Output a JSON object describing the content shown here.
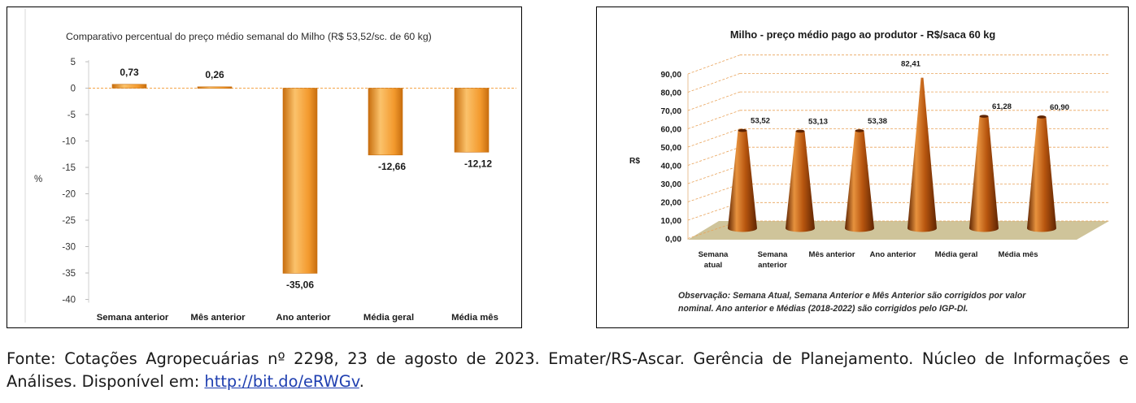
{
  "chart_data": [
    {
      "type": "bar",
      "title": "Comparativo percentual do preço médio semanal do Milho (R$ 53,52/sc. de 60 kg)",
      "ylabel": "%",
      "xlabel": "",
      "categories": [
        "Semana anterior",
        "Mês anterior",
        "Ano anterior",
        "Média geral",
        "Média mês"
      ],
      "values": [
        0.73,
        0.26,
        -35.06,
        -12.66,
        -12.12
      ],
      "value_labels": [
        "0,73",
        "0,26",
        "-35,06",
        "-12,66",
        "-12,12"
      ],
      "ylim": [
        -40,
        5
      ],
      "yticks": [
        5,
        0,
        -5,
        -10,
        -15,
        -20,
        -25,
        -30,
        -35,
        -40
      ],
      "grid": false,
      "legend": "none",
      "colors": {
        "bar": "#f39a2e",
        "bar_light": "#fbc26b",
        "bar_dark": "#c86e0e",
        "zero_line": "#f3a54a"
      }
    },
    {
      "type": "bar",
      "subtype": "3d-cone",
      "title": "Milho - preço médio pago ao produtor - R$/saca 60 kg",
      "ylabel": "R$",
      "xlabel": "",
      "categories": [
        "Semana atual",
        "Semana anterior",
        "Mês anterior",
        "Ano anterior",
        "Média geral",
        "Média mês"
      ],
      "values": [
        53.52,
        53.13,
        53.38,
        82.41,
        61.28,
        60.9
      ],
      "value_labels": [
        "53,52",
        "53,13",
        "53,38",
        "82,41",
        "61,28",
        "60,90"
      ],
      "ylim": [
        0,
        90
      ],
      "yticks": [
        "0,00",
        "10,00",
        "20,00",
        "30,00",
        "40,00",
        "50,00",
        "60,00",
        "70,00",
        "80,00",
        "90,00"
      ],
      "grid": true,
      "legend": "none",
      "note": "Observação: Semana Atual, Semana Anterior e Mês Anterior são corrigidos por valor nominal. Ano anterior e Médias (2018-2022) são corrigidos pelo IGP-DI.",
      "colors": {
        "cone": "#b8560f",
        "cone_dark": "#5e2402",
        "cone_light": "#e7923e",
        "floor": "#cfc49a",
        "grid": "#e9a35a"
      }
    }
  ],
  "source": {
    "text": "Fonte: Cotações Agropecuárias nº 2298, 23 de agosto de 2023. Emater/RS-Ascar. Gerência de Planejamento. Núcleo de Informações e Análises. Disponível em: ",
    "link": "http://bit.do/eRWGv",
    "end": "."
  }
}
